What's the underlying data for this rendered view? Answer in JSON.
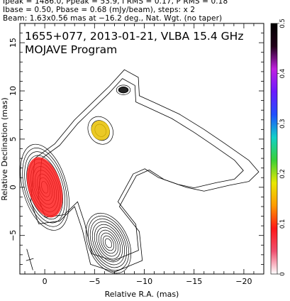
{
  "header": {
    "line1": "Ipeak = 1486.0, Ppeak = 53.9, I RMS = 0.17, P RMS = 0.18",
    "line2": "Ibase = 0.50, Pbase = 0.68 (mJy/beam), steps: x 2",
    "line3": "Beam: 1.63x0.56 mas at −16.2 deg., Nat. Wgt. (no taper)"
  },
  "chart_data": {
    "type": "contour",
    "title": "1655+077, 2013-01-21, VLBA 15.4 GHz",
    "subtitle": "MOJAVE Program",
    "xlabel": "Relative R.A. (mas)",
    "ylabel": "Relative Declination (mas)",
    "xlim": [
      2.5,
      -22
    ],
    "ylim": [
      -9,
      17
    ],
    "xticks": [
      {
        "v": 0,
        "label": "0"
      },
      {
        "v": -5,
        "label": "−5"
      },
      {
        "v": -10,
        "label": "−10"
      },
      {
        "v": -15,
        "label": "−15"
      },
      {
        "v": -20,
        "label": "−20"
      }
    ],
    "yticks": [
      {
        "v": -5,
        "label": "−5"
      },
      {
        "v": 0,
        "label": "0"
      },
      {
        "v": 5,
        "label": "5"
      },
      {
        "v": 10,
        "label": "10"
      },
      {
        "v": 15,
        "label": "15"
      }
    ],
    "colorbar": {
      "min": 0,
      "max": 0.5,
      "ticks": [
        {
          "v": 0,
          "label": "0"
        },
        {
          "v": 0.1,
          "label": "0.1"
        },
        {
          "v": 0.2,
          "label": "0.2"
        },
        {
          "v": 0.3,
          "label": "0.3"
        },
        {
          "v": 0.4,
          "label": "0.4"
        },
        {
          "v": 0.5,
          "label": "0.5"
        }
      ],
      "stops": [
        "#ffffff",
        "#f05070",
        "#ff1818",
        "#ff9a00",
        "#e8e800",
        "#38d038",
        "#10d0c8",
        "#2050ff",
        "#6a1aff",
        "#c020e0",
        "#200018",
        "#000000"
      ]
    },
    "contour_levels_mjy_per_beam": [
      0.5,
      1,
      2,
      4,
      8,
      16,
      32,
      64,
      128,
      256,
      512,
      1024
    ],
    "components": [
      {
        "name": "core",
        "x": 0,
        "y": 0,
        "rings": 11,
        "rx": 2.2,
        "ry": 4.6,
        "angle": -16,
        "pol_color": "#ff2020"
      },
      {
        "name": "jet-knot-a",
        "x": -5.6,
        "y": 5.9,
        "rings": 3,
        "rx": 1.2,
        "ry": 1.5,
        "angle": -30,
        "pol_color": "#e8c000"
      },
      {
        "name": "jet-knot-b",
        "x": -7.9,
        "y": 10.1,
        "rings": 2,
        "rx": 0.7,
        "ry": 0.5,
        "angle": 0,
        "pol_color": "#000000"
      },
      {
        "name": "southern-component",
        "x": -6.4,
        "y": -5.8,
        "rings": 10,
        "rx": 2.0,
        "ry": 3.3,
        "angle": -25,
        "pol_color": null
      }
    ],
    "beam": {
      "x": 1.5,
      "y": -7.5,
      "major": 1.63,
      "minor": 0.56,
      "pa": -16.2
    }
  }
}
